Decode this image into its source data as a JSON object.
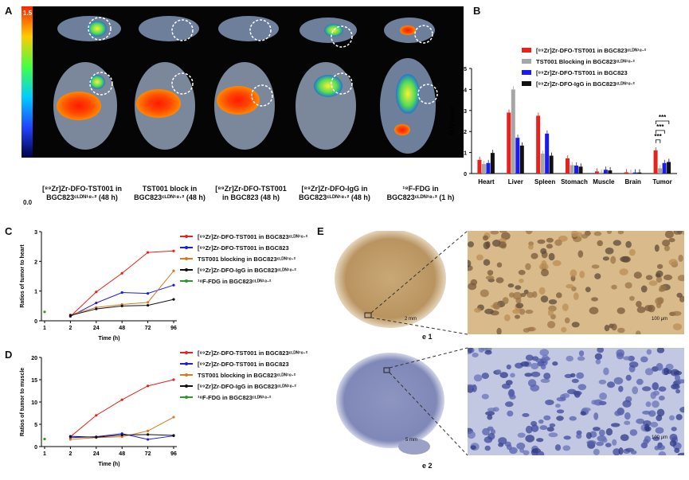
{
  "panels": {
    "a": "A",
    "b": "B",
    "c": "C",
    "d": "D",
    "e": "E"
  },
  "colorbar": {
    "max": "1.5",
    "min": "0.0"
  },
  "pet_captions": [
    "[⁸⁹Zr]Zr-DFO-TST001 in BGC823ᶜᴸᴰᴺ¹⁸·² (48 h)",
    "TST001 block in BGC823ᶜᴸᴰᴺ¹⁸·² (48 h)",
    "[⁸⁹Zr]Zr-DFO-TST001 in BGC823 (48 h)",
    "[⁸⁹Zr]Zr-DFO-IgG in BGC823ᶜᴸᴰᴺ¹⁸·² (48 h)",
    "¹⁸F-FDG in BGC823ᶜᴸᴰᴺ¹⁸·² (1 h)"
  ],
  "colors": {
    "red": "#e8211c",
    "grey": "#a6a6a6",
    "blue": "#1b1bf0",
    "black": "#111111",
    "orange": "#d87a1e",
    "green": "#2a9a2a"
  },
  "chart_data": [
    {
      "type": "bar",
      "ylabel": "SUVmean",
      "ylim": [
        0,
        5
      ],
      "yticks": [
        0,
        1,
        2,
        3,
        4,
        5
      ],
      "categories": [
        "Heart",
        "Liver",
        "Spleen",
        "Stomach",
        "Muscle",
        "Brain",
        "Tumor"
      ],
      "series": [
        {
          "name": "[⁸⁹Zr]Zr-DFO-TST001 in BGC823ᶜᴸᴰᴺ¹⁸·²",
          "values": [
            0.65,
            2.9,
            2.75,
            0.72,
            0.1,
            0.06,
            1.1
          ]
        },
        {
          "name": "TST001 Blocking in BGC823ᶜᴸᴰᴺ¹⁸·²",
          "values": [
            0.45,
            4.0,
            0.95,
            0.4,
            0.05,
            0.04,
            0.25
          ]
        },
        {
          "name": "[⁸⁹Zr]Zr-DFO-TST001 in BGC823",
          "values": [
            0.5,
            1.7,
            1.9,
            0.38,
            0.18,
            0.05,
            0.5
          ]
        },
        {
          "name": "[⁸⁹Zr]Zr-DFO-IgG in BGC823ᶜᴸᴰᴺ¹⁸·²",
          "values": [
            0.98,
            1.33,
            0.85,
            0.33,
            0.15,
            0.05,
            0.55
          ]
        }
      ],
      "significance": [
        "***",
        "***",
        "***"
      ]
    },
    {
      "type": "line",
      "xlabel": "Time (h)",
      "ylabel": "Ratios of tumor to heart",
      "x": [
        1,
        2,
        24,
        48,
        72,
        96
      ],
      "xticks": [
        "1",
        "2",
        "24",
        "48",
        "72",
        "96"
      ],
      "ylim": [
        0,
        3
      ],
      "yticks": [
        0,
        1,
        2,
        3
      ],
      "series": [
        {
          "name": "[⁸⁹Zr]Zr-DFO-TST001 in BGC823ᶜᴸᴰᴺ¹⁸·²",
          "values": [
            null,
            0.15,
            0.97,
            1.6,
            2.3,
            2.35
          ]
        },
        {
          "name": "[⁸⁹Zr]Zr-DFO-TST001 in BGC823",
          "values": [
            null,
            0.15,
            0.6,
            0.95,
            0.92,
            1.2
          ]
        },
        {
          "name": "TST001 blocking in BGC823ᶜᴸᴰᴺ¹⁸·²",
          "values": [
            null,
            0.2,
            0.45,
            0.55,
            0.62,
            1.68
          ]
        },
        {
          "name": "[⁸⁹Zr]Zr-DFO-IgG in BGC823ᶜᴸᴰᴺ¹⁸·²",
          "values": [
            null,
            0.18,
            0.4,
            0.5,
            0.52,
            0.72
          ]
        },
        {
          "name": "¹⁸F-FDG in BGC823ᶜᴸᴰᴺ¹⁸·²",
          "values": [
            0.3,
            null,
            null,
            null,
            null,
            null
          ]
        }
      ]
    },
    {
      "type": "line",
      "xlabel": "Time (h)",
      "ylabel": "Ratios of tumor to muscle",
      "x": [
        1,
        2,
        24,
        48,
        72,
        96
      ],
      "xticks": [
        "1",
        "2",
        "24",
        "48",
        "72",
        "96"
      ],
      "ylim": [
        0,
        20
      ],
      "yticks": [
        0,
        5,
        10,
        15,
        20
      ],
      "series": [
        {
          "name": "[⁸⁹Zr]Zr-DFO-TST001 in BGC823ᶜᴸᴰᴺ¹⁸·²",
          "values": [
            null,
            2.2,
            7,
            10.5,
            13.6,
            15
          ]
        },
        {
          "name": "[⁸⁹Zr]Zr-DFO-TST001 in BGC823",
          "values": [
            null,
            2,
            2.2,
            2.9,
            1.6,
            2.4
          ]
        },
        {
          "name": "TST001 blocking in BGC823ᶜᴸᴰᴺ¹⁸·²",
          "values": [
            null,
            1.6,
            2.0,
            2.2,
            3.5,
            6.6
          ]
        },
        {
          "name": "[⁸⁹Zr]Zr-DFO-IgG in BGC823ᶜᴸᴰᴺ¹⁸·²",
          "values": [
            null,
            2.3,
            2.1,
            2.6,
            2.7,
            2.5
          ]
        },
        {
          "name": "¹⁸F-FDG in BGC823ᶜᴸᴰᴺ¹⁸·²",
          "values": [
            1.7,
            null,
            null,
            null,
            null,
            null
          ]
        }
      ]
    }
  ],
  "histology": {
    "e1_label": "e 1",
    "e2_label": "e 2",
    "scale_e1_low": "2 mm",
    "scale_e1_high": "100 μm",
    "scale_e2_low": "5 mm",
    "scale_e2_high": "100 μm"
  }
}
